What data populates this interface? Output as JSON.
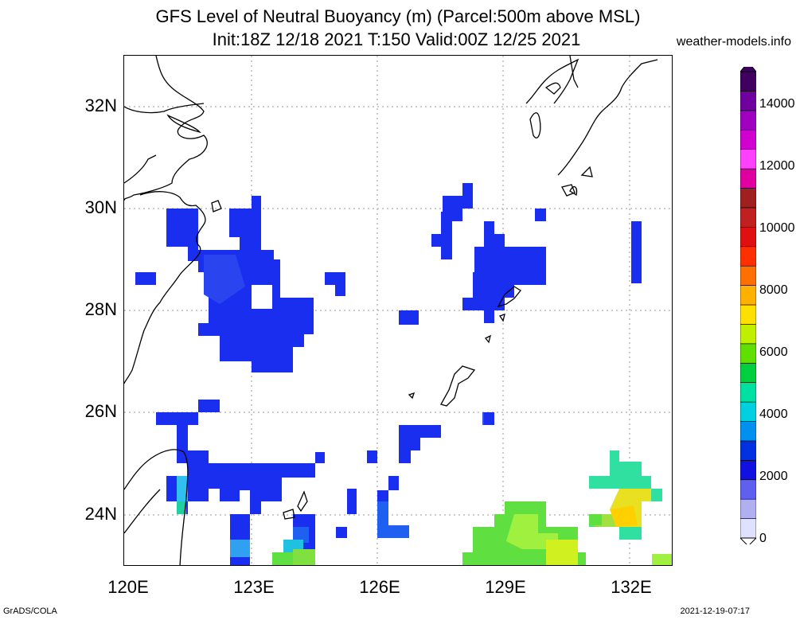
{
  "header": {
    "title_line1": "GFS Level of Neutral Buoyancy (m) (Parcel:500m above MSL)",
    "title_line2": "Init:18Z 12/18 2021 T:150 Valid:00Z 12/25 2021",
    "site": "weather-models.info"
  },
  "axes": {
    "lat_labels": [
      "32N",
      "30N",
      "28N",
      "26N",
      "24N"
    ],
    "lon_labels": [
      "120E",
      "123E",
      "126E",
      "129E",
      "132E"
    ]
  },
  "colorbar": {
    "labels": [
      "14000",
      "12000",
      "10000",
      "8000",
      "6000",
      "4000",
      "2000",
      "0"
    ],
    "colors": [
      "#e0e0ff",
      "#b0b0f0",
      "#6060f0",
      "#1010e0",
      "#0030e0",
      "#0090f0",
      "#00d0e0",
      "#00e0a0",
      "#00d040",
      "#60e000",
      "#c0f000",
      "#ffe000",
      "#ffb000",
      "#ff7000",
      "#ff3000",
      "#e01010",
      "#c02020",
      "#a02020",
      "#e000a0",
      "#ff40ff",
      "#d000d0",
      "#a000c0",
      "#7000a0",
      "#400060"
    ]
  },
  "footer": {
    "left": "GrADS/COLA",
    "right": "2021-12-19-07:17"
  }
}
